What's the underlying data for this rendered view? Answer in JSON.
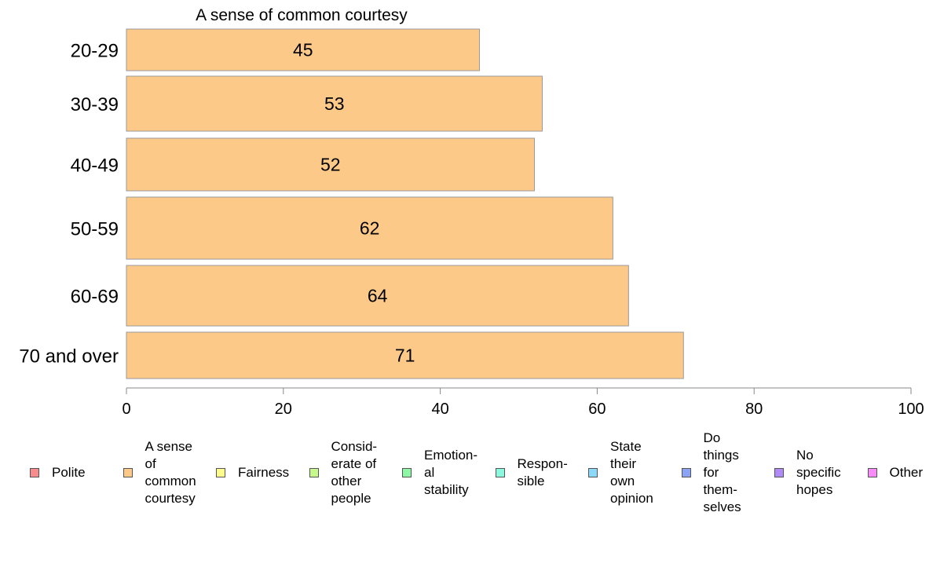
{
  "chart_data": {
    "type": "bar",
    "orientation": "horizontal",
    "title": "A sense of common courtesy",
    "categories": [
      "20-29",
      "30-39",
      "40-49",
      "50-59",
      "60-69",
      "70 and over"
    ],
    "series": [
      {
        "name": "A sense of common courtesy",
        "values": [
          45,
          53,
          52,
          62,
          64,
          71
        ],
        "color": "#fdc988"
      }
    ],
    "xlim": [
      0,
      100
    ],
    "xticks": [
      "0",
      "20",
      "40",
      "60",
      "80",
      "100"
    ],
    "data_labels": [
      "45",
      "53",
      "52",
      "62",
      "64",
      "71"
    ],
    "grid": false,
    "legend_position": "bottom",
    "legend": [
      {
        "label": "Polite",
        "color": "#f88c8c"
      },
      {
        "label": "A sense\nof\ncommon\ncourtesy",
        "color": "#fdc988"
      },
      {
        "label": "Fairness",
        "color": "#fdfc8c"
      },
      {
        "label": "Consid-\nerate of\nother\npeople",
        "color": "#c6f88c"
      },
      {
        "label": "Emotion-\nal\nstability",
        "color": "#8cf8a3"
      },
      {
        "label": "Respon-\nsible",
        "color": "#8cf8e0"
      },
      {
        "label": "State\ntheir\nown\nopinion",
        "color": "#8cd8f8"
      },
      {
        "label": "Do\nthings\nfor\nthem-\nselves",
        "color": "#8ca4f8"
      },
      {
        "label": "No\nspecific\nhopes",
        "color": "#b08cf8"
      },
      {
        "label": "Other",
        "color": "#f88cf8"
      }
    ]
  }
}
